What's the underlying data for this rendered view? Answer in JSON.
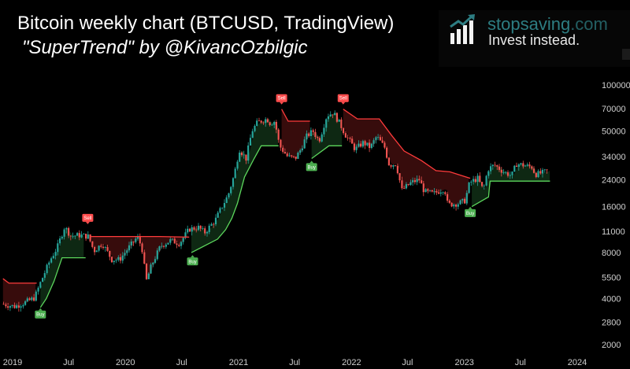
{
  "header": {
    "title": "Bitcoin weekly chart (BTCUSD, TradingView)",
    "subtitle": "\"SuperTrend\" by @KivancOzbilgic"
  },
  "branding": {
    "name_part1": "stopsaving",
    "name_part2": ".com",
    "tagline": "Invest instead.",
    "icon": "bar-chart-arrow-icon",
    "color": "#2d7d82"
  },
  "chart_data": {
    "type": "candlestick",
    "scale": "log",
    "ylim": [
      1700,
      140000
    ],
    "y_ticks": [
      100000,
      70000,
      50000,
      34000,
      24000,
      16000,
      11000,
      8000,
      5500,
      4000,
      2800,
      2000
    ],
    "x_ticks": [
      {
        "label": "2019",
        "date": "2019-01-01"
      },
      {
        "label": "Jul",
        "date": "2019-07-01"
      },
      {
        "label": "2020",
        "date": "2020-01-01"
      },
      {
        "label": "Jul",
        "date": "2020-07-01"
      },
      {
        "label": "2021",
        "date": "2021-01-01"
      },
      {
        "label": "Jul",
        "date": "2021-07-01"
      },
      {
        "label": "2022",
        "date": "2022-01-01"
      },
      {
        "label": "Jul",
        "date": "2022-07-01"
      },
      {
        "label": "2023",
        "date": "2023-01-01"
      },
      {
        "label": "Jul",
        "date": "2023-07-01"
      },
      {
        "label": "2024",
        "date": "2024-01-01"
      }
    ],
    "series": [
      {
        "name": "BTCUSD",
        "points": [
          [
            "2018-12-01",
            3700
          ],
          [
            "2019-01-15",
            3550
          ],
          [
            "2019-02-20",
            3800
          ],
          [
            "2019-03-20",
            4050
          ],
          [
            "2019-04-10",
            5200
          ],
          [
            "2019-05-10",
            7200
          ],
          [
            "2019-06-01",
            8600
          ],
          [
            "2019-06-25",
            11800
          ],
          [
            "2019-07-15",
            10300
          ],
          [
            "2019-08-15",
            10400
          ],
          [
            "2019-09-10",
            10200
          ],
          [
            "2019-09-28",
            8200
          ],
          [
            "2019-10-25",
            9200
          ],
          [
            "2019-11-25",
            7200
          ],
          [
            "2019-12-20",
            7200
          ],
          [
            "2020-01-20",
            8700
          ],
          [
            "2020-02-15",
            10100
          ],
          [
            "2020-03-01",
            8700
          ],
          [
            "2020-03-15",
            5200
          ],
          [
            "2020-04-01",
            6600
          ],
          [
            "2020-04-30",
            8800
          ],
          [
            "2020-06-01",
            9600
          ],
          [
            "2020-07-01",
            9200
          ],
          [
            "2020-08-01",
            11400
          ],
          [
            "2020-09-01",
            11700
          ],
          [
            "2020-09-20",
            10800
          ],
          [
            "2020-10-25",
            13100
          ],
          [
            "2020-11-15",
            16000
          ],
          [
            "2020-12-05",
            19000
          ],
          [
            "2020-12-25",
            26000
          ],
          [
            "2021-01-10",
            38000
          ],
          [
            "2021-02-01",
            33000
          ],
          [
            "2021-02-20",
            50000
          ],
          [
            "2021-03-10",
            57000
          ],
          [
            "2021-04-10",
            60000
          ],
          [
            "2021-04-20",
            56000
          ],
          [
            "2021-05-05",
            58000
          ],
          [
            "2021-05-20",
            40000
          ],
          [
            "2021-06-15",
            34000
          ],
          [
            "2021-07-10",
            33000
          ],
          [
            "2021-07-25",
            37000
          ],
          [
            "2021-08-15",
            46000
          ],
          [
            "2021-09-05",
            50000
          ],
          [
            "2021-09-25",
            43000
          ],
          [
            "2021-10-20",
            63000
          ],
          [
            "2021-11-10",
            66000
          ],
          [
            "2021-12-01",
            56000
          ],
          [
            "2021-12-20",
            47000
          ],
          [
            "2022-01-20",
            38000
          ],
          [
            "2022-02-15",
            42000
          ],
          [
            "2022-03-10",
            39000
          ],
          [
            "2022-03-30",
            46000
          ],
          [
            "2022-04-25",
            39000
          ],
          [
            "2022-05-10",
            30000
          ],
          [
            "2022-06-01",
            30500
          ],
          [
            "2022-06-20",
            20500
          ],
          [
            "2022-07-20",
            23000
          ],
          [
            "2022-08-15",
            24000
          ],
          [
            "2022-09-01",
            20000
          ],
          [
            "2022-10-01",
            19500
          ],
          [
            "2022-11-05",
            21000
          ],
          [
            "2022-11-15",
            16500
          ],
          [
            "2022-12-20",
            16800
          ],
          [
            "2023-01-10",
            17500
          ],
          [
            "2023-01-25",
            23000
          ],
          [
            "2023-02-20",
            24500
          ],
          [
            "2023-03-10",
            20500
          ],
          [
            "2023-03-25",
            28000
          ],
          [
            "2023-04-15",
            30000
          ],
          [
            "2023-05-15",
            27000
          ],
          [
            "2023-06-10",
            25500
          ],
          [
            "2023-06-25",
            30500
          ],
          [
            "2023-07-20",
            29800
          ],
          [
            "2023-08-15",
            29000
          ],
          [
            "2023-08-25",
            26000
          ],
          [
            "2023-09-15",
            26500
          ],
          [
            "2023-10-05",
            27500
          ]
        ]
      },
      {
        "name": "SuperTrend",
        "segments": [
          {
            "trend": "down",
            "points": [
              [
                "2018-12-01",
                5400
              ],
              [
                "2018-12-20",
                5050
              ],
              [
                "2019-03-20",
                5050
              ]
            ]
          },
          {
            "trend": "up",
            "points": [
              [
                "2019-04-01",
                3500
              ],
              [
                "2019-04-20",
                4000
              ],
              [
                "2019-05-15",
                5200
              ],
              [
                "2019-06-10",
                7400
              ],
              [
                "2019-08-25",
                7400
              ]
            ]
          },
          {
            "trend": "down",
            "points": [
              [
                "2019-09-10",
                10200
              ],
              [
                "2020-04-20",
                10200
              ],
              [
                "2020-07-25",
                10100
              ]
            ]
          },
          {
            "trend": "up",
            "points": [
              [
                "2020-08-01",
                8000
              ],
              [
                "2020-10-25",
                9800
              ],
              [
                "2020-11-20",
                11300
              ],
              [
                "2020-12-10",
                13400
              ],
              [
                "2020-12-28",
                16800
              ],
              [
                "2021-01-20",
                25000
              ],
              [
                "2021-02-20",
                33000
              ],
              [
                "2021-03-15",
                40000
              ],
              [
                "2021-05-10",
                40000
              ]
            ]
          },
          {
            "trend": "down",
            "points": [
              [
                "2021-05-20",
                69500
              ],
              [
                "2021-06-10",
                58000
              ],
              [
                "2021-08-20",
                58000
              ]
            ]
          },
          {
            "trend": "up",
            "points": [
              [
                "2021-08-25",
                33000
              ],
              [
                "2021-10-20",
                40000
              ],
              [
                "2021-12-01",
                40000
              ]
            ]
          },
          {
            "trend": "down",
            "points": [
              [
                "2021-12-05",
                69500
              ],
              [
                "2022-01-20",
                60000
              ],
              [
                "2022-04-01",
                60000
              ],
              [
                "2022-05-10",
                47000
              ],
              [
                "2022-06-20",
                37000
              ],
              [
                "2022-08-15",
                32000
              ],
              [
                "2022-10-01",
                27500
              ],
              [
                "2022-11-15",
                27000
              ],
              [
                "2023-01-20",
                24500
              ]
            ]
          },
          {
            "trend": "up",
            "points": [
              [
                "2023-01-25",
                16000
              ],
              [
                "2023-03-20",
                18500
              ],
              [
                "2023-03-25",
                23500
              ],
              [
                "2023-10-05",
                23500
              ]
            ]
          }
        ]
      }
    ],
    "signals": [
      {
        "label": "Buy",
        "date": "2019-04-01",
        "price": 3150
      },
      {
        "label": "Sell",
        "date": "2019-09-01",
        "price": 13500
      },
      {
        "label": "Buy",
        "date": "2020-08-05",
        "price": 7000
      },
      {
        "label": "Sell",
        "date": "2021-05-20",
        "price": 82000
      },
      {
        "label": "Buy",
        "date": "2021-08-25",
        "price": 29000
      },
      {
        "label": "Sell",
        "date": "2021-12-05",
        "price": 82000
      },
      {
        "label": "Buy",
        "date": "2023-01-20",
        "price": 14500
      }
    ],
    "colors": {
      "up_line": "#5cd65c",
      "down_line": "#ff3b3b",
      "up_fill": "#0f2a14",
      "down_fill": "#3a0d0d",
      "candle_up": "#26a69a",
      "candle_down": "#ef5350",
      "buy_label": "#4caf50",
      "sell_label": "#ff4d4d"
    }
  }
}
